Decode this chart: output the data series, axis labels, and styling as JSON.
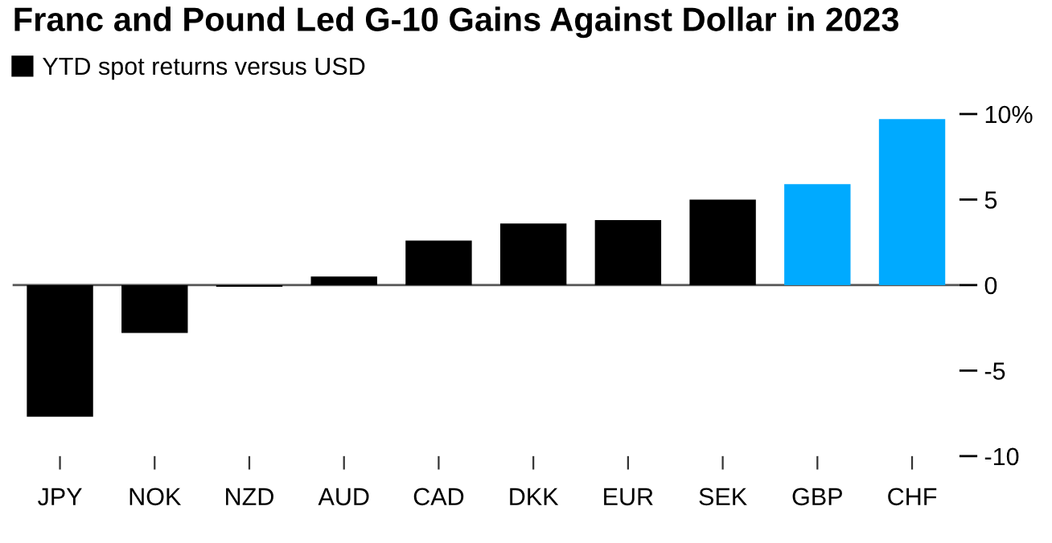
{
  "chart_data": {
    "type": "bar",
    "title": "Franc and Pound Led G-10 Gains Against Dollar in 2023",
    "categories": [
      "JPY",
      "NOK",
      "NZD",
      "AUD",
      "CAD",
      "DKK",
      "EUR",
      "SEK",
      "GBP",
      "CHF"
    ],
    "series": [
      {
        "name": "YTD spot returns versus USD",
        "color": "#000000",
        "values": [
          -7.7,
          -2.8,
          -0.1,
          0.5,
          2.6,
          3.6,
          3.8,
          5.0,
          5.9,
          9.7
        ],
        "colors": [
          "#000000",
          "#000000",
          "#000000",
          "#000000",
          "#000000",
          "#000000",
          "#000000",
          "#000000",
          "#00aaff",
          "#00aaff"
        ]
      }
    ],
    "ylim": [
      -10,
      10
    ],
    "yticks": [
      {
        "value": -10,
        "label": "-10"
      },
      {
        "value": -5,
        "label": "-5"
      },
      0,
      5,
      {
        "value": 10,
        "label": "10%"
      }
    ],
    "ref_lines": [
      {
        "axis": "y",
        "value": 0,
        "color": "#555555"
      }
    ],
    "grid": false,
    "legend": "top left"
  }
}
